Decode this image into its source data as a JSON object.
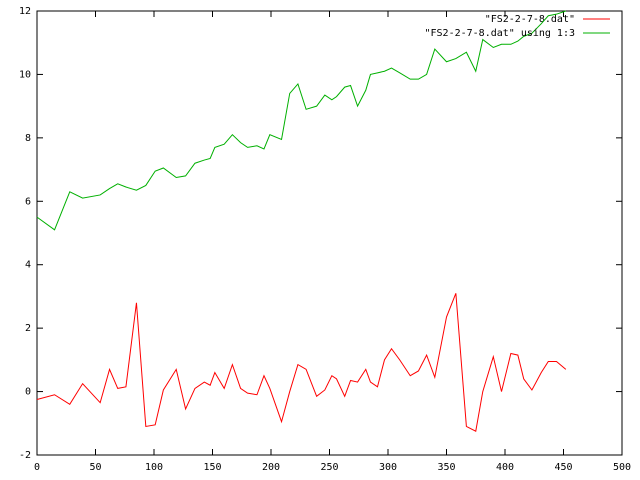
{
  "chart_data": {
    "type": "line",
    "x": [
      0,
      15,
      28,
      39,
      54,
      62,
      69,
      76,
      85,
      93,
      101,
      108,
      119,
      127,
      135,
      143,
      148,
      152,
      160,
      167,
      174,
      180,
      188,
      194,
      199,
      209,
      216,
      223,
      230,
      239,
      246,
      252,
      256,
      263,
      268,
      274,
      281,
      285,
      291,
      297,
      303,
      310,
      319,
      326,
      333,
      340,
      350,
      358,
      367,
      375,
      381,
      390,
      397,
      405,
      411,
      416,
      423,
      431,
      437,
      444,
      452
    ],
    "series": [
      {
        "name": "\"FS2-2-7-8.dat\"",
        "color": "#ff0000",
        "values": [
          -0.25,
          -0.1,
          -0.4,
          0.25,
          -0.35,
          0.7,
          0.1,
          0.15,
          2.8,
          -1.1,
          -1.05,
          0.05,
          0.7,
          -0.55,
          0.1,
          0.3,
          0.2,
          0.6,
          0.1,
          0.85,
          0.1,
          -0.05,
          -0.1,
          0.5,
          0.1,
          -0.95,
          0,
          0.85,
          0.7,
          -0.15,
          0.05,
          0.5,
          0.4,
          -0.15,
          0.35,
          0.3,
          0.7,
          0.3,
          0.15,
          1.0,
          1.35,
          1.0,
          0.5,
          0.65,
          1.15,
          0.45,
          2.35,
          3.1,
          -1.1,
          -1.25,
          0,
          1.1,
          0,
          1.2,
          1.15,
          0.4,
          0.05,
          0.6,
          0.95,
          0.95,
          0.7
        ]
      },
      {
        "name": "\"FS2-2-7-8.dat\" using 1:3",
        "color": "#00b000",
        "values": [
          5.5,
          5.1,
          6.3,
          6.1,
          6.2,
          6.4,
          6.55,
          6.45,
          6.35,
          6.5,
          6.95,
          7.05,
          6.75,
          6.8,
          7.2,
          7.3,
          7.35,
          7.7,
          7.8,
          8.1,
          7.85,
          7.7,
          7.75,
          7.65,
          8.1,
          7.95,
          9.4,
          9.7,
          8.9,
          9.0,
          9.35,
          9.2,
          9.3,
          9.6,
          9.65,
          9.0,
          9.5,
          10.0,
          10.05,
          10.1,
          10.2,
          10.05,
          9.85,
          9.85,
          10.0,
          10.8,
          10.4,
          10.5,
          10.7,
          10.1,
          11.1,
          10.85,
          10.95,
          10.95,
          11.05,
          11.2,
          11.3,
          11.6,
          11.85,
          11.9,
          12.0
        ]
      }
    ],
    "xlim": [
      0,
      500
    ],
    "xticks": [
      0,
      50,
      100,
      150,
      200,
      250,
      300,
      350,
      400,
      450,
      500
    ],
    "ylim": [
      -2,
      12
    ],
    "yticks": [
      -2,
      0,
      2,
      4,
      6,
      8,
      10,
      12
    ],
    "legend": "top-right"
  }
}
